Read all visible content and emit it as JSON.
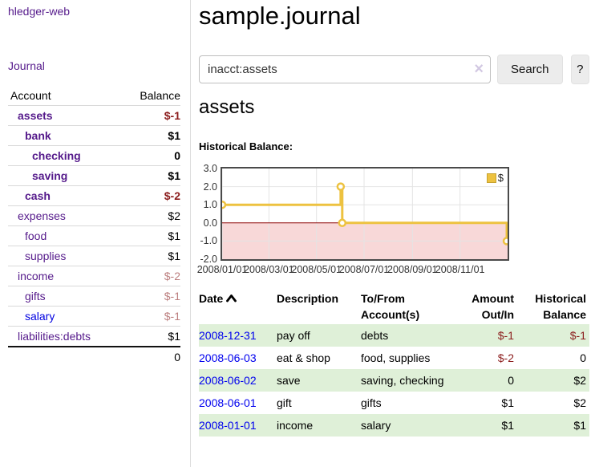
{
  "app": {
    "brand": "hledger-web",
    "journal_link": "Journal"
  },
  "colors": {
    "link_purple": "#551a8b",
    "link_blue": "#0000e0",
    "negative": "#8b1c1c",
    "negative_faded": "#bc7f7f",
    "row_green": "#dff0d8",
    "series_gold": "#edc240",
    "negative_region_pink": "#f8d8d8",
    "zero_line": "#8b0000"
  },
  "sidebar": {
    "col_account": "Account",
    "col_balance": "Balance",
    "accounts": [
      {
        "name": "assets",
        "level": 1,
        "bold": true,
        "link": "purple",
        "balance": "$-1",
        "bal": "neg"
      },
      {
        "name": "bank",
        "level": 2,
        "bold": true,
        "link": "purple",
        "balance": "$1",
        "bal": "pos"
      },
      {
        "name": "checking",
        "level": 3,
        "bold": true,
        "link": "purple",
        "balance": "0",
        "bal": "pos"
      },
      {
        "name": "saving",
        "level": 3,
        "bold": true,
        "link": "purple",
        "balance": "$1",
        "bal": "pos"
      },
      {
        "name": "cash",
        "level": 2,
        "bold": true,
        "link": "purple",
        "balance": "$-2",
        "bal": "neg"
      },
      {
        "name": "expenses",
        "level": 1,
        "bold": false,
        "link": "purple",
        "balance": "$2",
        "bal": "pos"
      },
      {
        "name": "food",
        "level": 2,
        "bold": false,
        "link": "purple",
        "balance": "$1",
        "bal": "pos"
      },
      {
        "name": "supplies",
        "level": 2,
        "bold": false,
        "link": "purple",
        "balance": "$1",
        "bal": "pos"
      },
      {
        "name": "income",
        "level": 1,
        "bold": false,
        "link": "purple",
        "balance": "$-2",
        "bal": "negfaded"
      },
      {
        "name": "gifts",
        "level": 2,
        "bold": false,
        "link": "purple",
        "balance": "$-1",
        "bal": "negfaded"
      },
      {
        "name": "salary",
        "level": 2,
        "bold": false,
        "link": "blue",
        "balance": "$-1",
        "bal": "negfaded"
      },
      {
        "name": "liabilities:debts",
        "level": 1,
        "bold": false,
        "link": "purple",
        "balance": "$1",
        "bal": "pos"
      }
    ],
    "total": "0"
  },
  "main": {
    "title": "sample.journal",
    "account_heading": "assets",
    "chart_label": "Historical Balance:"
  },
  "search": {
    "value": "inacct:assets",
    "clear": "×",
    "button": "Search",
    "help": "?"
  },
  "chart_data": {
    "type": "line",
    "step": true,
    "title": "Historical Balance:",
    "series": [
      {
        "name": "$",
        "color": "#edc240",
        "points": [
          [
            "2008-01-01",
            1
          ],
          [
            "2008-06-01",
            2
          ],
          [
            "2008-06-03",
            0
          ],
          [
            "2008-12-31",
            -1
          ]
        ]
      }
    ],
    "x_ticks": [
      "2008/01/01",
      "2008/03/01",
      "2008/05/01",
      "2008/07/01",
      "2008/09/01",
      "2008/11/01"
    ],
    "y_ticks": [
      "3.0",
      "2.0",
      "1.0",
      "0.0",
      "-1.0",
      "-2.0"
    ],
    "y_tick_values": [
      3,
      2,
      1,
      0,
      -1,
      -2
    ],
    "ylim": [
      -2,
      3
    ],
    "x_range_days": 366,
    "grid": true,
    "legend": {
      "label": "$",
      "position": "top-right"
    },
    "negative_region_color": "#f8d8d8",
    "zero_line_color": "#8b0000"
  },
  "register": {
    "headers": {
      "date": "Date",
      "description": "Description",
      "accounts": "To/From Account(s)",
      "amount": "Amount Out/In",
      "balance": "Historical Balance"
    },
    "rows": [
      {
        "date": "2008-12-31",
        "description": "pay off",
        "accounts": "debts",
        "amount": "$-1",
        "amount_neg": true,
        "balance": "$-1",
        "balance_neg": true
      },
      {
        "date": "2008-06-03",
        "description": "eat & shop",
        "accounts": "food, supplies",
        "amount": "$-2",
        "amount_neg": true,
        "balance": "0",
        "balance_neg": false
      },
      {
        "date": "2008-06-02",
        "description": "save",
        "accounts": "saving, checking",
        "amount": "0",
        "amount_neg": false,
        "balance": "$2",
        "balance_neg": false
      },
      {
        "date": "2008-06-01",
        "description": "gift",
        "accounts": "gifts",
        "amount": "$1",
        "amount_neg": false,
        "balance": "$2",
        "balance_neg": false
      },
      {
        "date": "2008-01-01",
        "description": "income",
        "accounts": "salary",
        "amount": "$1",
        "amount_neg": false,
        "balance": "$1",
        "balance_neg": false
      }
    ]
  }
}
